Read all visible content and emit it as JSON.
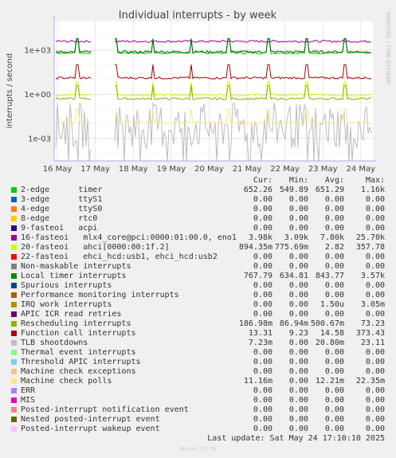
{
  "chart_data": {
    "type": "line",
    "title": "Individual interrupts - by week",
    "ylabel": "interrupts / second",
    "yscale": "log",
    "ylim": [
      3e-05,
      100000
    ],
    "y_ticks": [
      {
        "value": 1000,
        "label": "1e+03"
      },
      {
        "value": 1,
        "label": "1e+00"
      },
      {
        "value": 0.001,
        "label": "1e-03"
      }
    ],
    "x_ticks": [
      "16 May",
      "17 May",
      "18 May",
      "19 May",
      "20 May",
      "21 May",
      "22 May",
      "23 May",
      "24 May"
    ],
    "grid": true,
    "side_label": "RRDTOOL / TOBI OETIKER",
    "series": [
      {
        "name": "2-edge timer",
        "color": "#00cc00",
        "approx_level": 650
      },
      {
        "name": "16-fasteoi mlx4_core@pci:0000:01:00.0, eno1",
        "color": "#990099",
        "approx_level": 3980
      },
      {
        "name": "20-fasteoi ahci[0000:00:1f.2]",
        "color": "#ccff00",
        "approx_level": 0.9
      },
      {
        "name": "Local timer interrupts",
        "color": "#006600",
        "approx_level": 770
      },
      {
        "name": "Rescheduling interrupts",
        "color": "#8fb300",
        "approx_level": 0.5
      },
      {
        "name": "Function call interrupts",
        "color": "#aa0000",
        "approx_level": 13
      },
      {
        "name": "TLB shootdowns",
        "color": "#bbbbbb",
        "approx_level": 0.007
      },
      {
        "name": "Machine check polls",
        "color": "#ffe680",
        "approx_level": 0.012
      }
    ]
  },
  "legend": {
    "headers": {
      "cur": "Cur:",
      "min": "Min:",
      "avg": "Avg:",
      "max": "Max:"
    },
    "rows": [
      {
        "label": "2-edge      timer",
        "color": "#00cc00",
        "cur": "652.26",
        "min": "549.89",
        "avg": "651.29",
        "max": "1.16k"
      },
      {
        "label": "3-edge      ttyS1",
        "color": "#0066b3",
        "cur": "0.00",
        "min": "0.00",
        "avg": "0.00",
        "max": "0.00"
      },
      {
        "label": "4-edge      ttyS0",
        "color": "#ff8000",
        "cur": "0.00",
        "min": "0.00",
        "avg": "0.00",
        "max": "0.00"
      },
      {
        "label": "8-edge      rtc0",
        "color": "#ffcc00",
        "cur": "0.00",
        "min": "0.00",
        "avg": "0.00",
        "max": "0.00"
      },
      {
        "label": "9-fasteoi   acpi",
        "color": "#330099",
        "cur": "0.00",
        "min": "0.00",
        "avg": "0.00",
        "max": "0.00"
      },
      {
        "label": "16-fasteoi   mlx4_core@pci:0000:01:00.0, eno1",
        "color": "#990099",
        "cur": "3.98k",
        "min": "3.09k",
        "avg": "7.80k",
        "max": "25.70k"
      },
      {
        "label": "20-fasteoi   ahci[0000:00:1f.2]",
        "color": "#ccff00",
        "cur": "894.35m",
        "min": "775.69m",
        "avg": "2.82",
        "max": "357.78"
      },
      {
        "label": "22-fasteoi   ehci_hcd:usb1, ehci_hcd:usb2",
        "color": "#ff0000",
        "cur": "0.00",
        "min": "0.00",
        "avg": "0.00",
        "max": "0.00"
      },
      {
        "label": "Non-maskable interrupts",
        "color": "#808080",
        "cur": "0.00",
        "min": "0.00",
        "avg": "0.00",
        "max": "0.00"
      },
      {
        "label": "Local timer interrupts",
        "color": "#008f00",
        "cur": "767.79",
        "min": "634.81",
        "avg": "843.77",
        "max": "3.57k"
      },
      {
        "label": "Spurious interrupts",
        "color": "#00487d",
        "cur": "0.00",
        "min": "0.00",
        "avg": "0.00",
        "max": "0.00"
      },
      {
        "label": "Performance monitoring interrupts",
        "color": "#b35a00",
        "cur": "0.00",
        "min": "0.00",
        "avg": "0.00",
        "max": "0.00"
      },
      {
        "label": "IRQ work interrupts",
        "color": "#b38f00",
        "cur": "0.00",
        "min": "0.00",
        "avg": "1.50u",
        "max": "3.05m"
      },
      {
        "label": "APIC ICR read retries",
        "color": "#6b006b",
        "cur": "0.00",
        "min": "0.00",
        "avg": "0.00",
        "max": "0.00"
      },
      {
        "label": "Rescheduling interrupts",
        "color": "#8fb300",
        "cur": "186.98m",
        "min": "86.94m",
        "avg": "500.67m",
        "max": "73.23"
      },
      {
        "label": "Function call interrupts",
        "color": "#b30000",
        "cur": "13.31",
        "min": "9.23",
        "avg": "14.58",
        "max": "373.43"
      },
      {
        "label": "TLB shootdowns",
        "color": "#bebebe",
        "cur": "7.23m",
        "min": "0.00",
        "avg": "20.80m",
        "max": "23.11"
      },
      {
        "label": "Thermal event interrupts",
        "color": "#80ff80",
        "cur": "0.00",
        "min": "0.00",
        "avg": "0.00",
        "max": "0.00"
      },
      {
        "label": "Threshold APIC interrupts",
        "color": "#80c9ff",
        "cur": "0.00",
        "min": "0.00",
        "avg": "0.00",
        "max": "0.00"
      },
      {
        "label": "Machine check exceptions",
        "color": "#ffc080",
        "cur": "0.00",
        "min": "0.00",
        "avg": "0.00",
        "max": "0.00"
      },
      {
        "label": "Machine check polls",
        "color": "#ffe680",
        "cur": "11.16m",
        "min": "0.00",
        "avg": "12.21m",
        "max": "22.35m"
      },
      {
        "label": "ERR",
        "color": "#aa80ff",
        "cur": "0.00",
        "min": "0.00",
        "avg": "0.00",
        "max": "0.00"
      },
      {
        "label": "MIS",
        "color": "#ee00cc",
        "cur": "0.00",
        "min": "0.00",
        "avg": "0.00",
        "max": "0.00"
      },
      {
        "label": "Posted-interrupt notification event",
        "color": "#ff8080",
        "cur": "0.00",
        "min": "0.00",
        "avg": "0.00",
        "max": "0.00"
      },
      {
        "label": "Nested posted-interrupt event",
        "color": "#666600",
        "cur": "0.00",
        "min": "0.00",
        "avg": "0.00",
        "max": "0.00"
      },
      {
        "label": "Posted-interrupt wakeup event",
        "color": "#ffbfff",
        "cur": "0.00",
        "min": "0.00",
        "avg": "0.00",
        "max": "0.00"
      }
    ]
  },
  "footer": {
    "last_update": "Last update: Sat May 24 17:10:10 2025",
    "munin": "Munin 2.0.76"
  }
}
